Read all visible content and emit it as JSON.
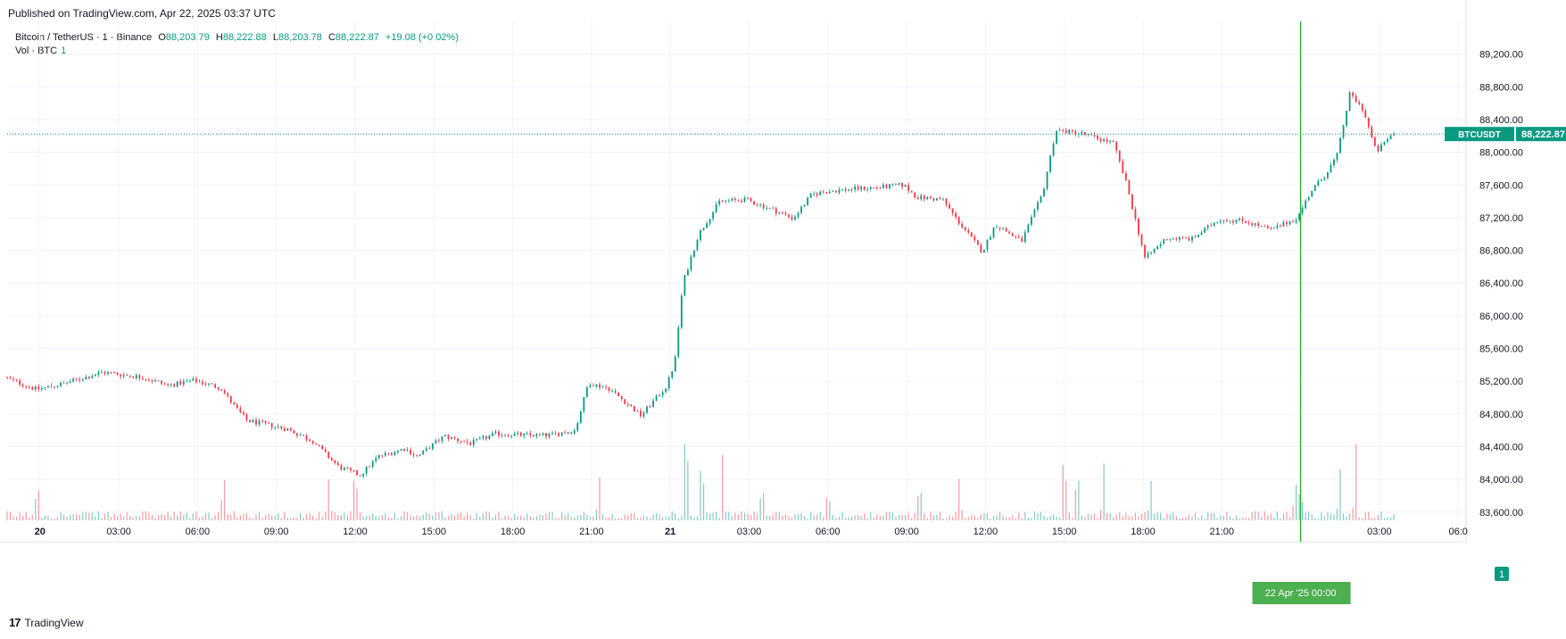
{
  "header": {
    "published": "Published on TradingView.com, Apr 22, 2025 03:37 UTC"
  },
  "legend": {
    "symbol": "Bitcoin / TetherUS · 1 · Binance",
    "o_label": "O",
    "o_value": "88,203.79",
    "h_label": "H",
    "h_value": "88,222.88",
    "l_label": "L",
    "l_value": "88,203.78",
    "c_label": "C",
    "c_value": "88,222.87",
    "change": "+19.08 (+0.02%)",
    "vol_label": "Vol · BTC",
    "vol_value": "1"
  },
  "price_tag": {
    "symbol": "BTCUSDT",
    "price": "88,222.87"
  },
  "cursor_label": {
    "date": "22 Apr '25",
    "time": "00:00"
  },
  "vol_tag": "1",
  "footer": {
    "brand": "TradingView"
  },
  "colors": {
    "up": "#089981",
    "down": "#f23645",
    "grid": "#f0f3fa",
    "cursor": "#22ab29",
    "cursor_label_bg": "#4caf50",
    "axis_text": "#131722"
  },
  "chart_data": {
    "type": "candlestick",
    "title": "Bitcoin / TetherUS · 1 · Binance",
    "ylim": [
      83500,
      89600
    ],
    "y_ticks": [
      "83,600.00",
      "84,000.00",
      "84,400.00",
      "84,800.00",
      "85,200.00",
      "85,600.00",
      "86,000.00",
      "86,400.00",
      "86,800.00",
      "87,200.00",
      "87,600.00",
      "88,000.00",
      "88,400.00",
      "88,800.00",
      "89,200.00"
    ],
    "y_tick_values": [
      83600,
      84000,
      84400,
      84800,
      85200,
      85600,
      86000,
      86400,
      86800,
      87200,
      87600,
      88000,
      88400,
      88800,
      89200
    ],
    "x_ticks": [
      "20",
      "03:00",
      "06:00",
      "09:00",
      "12:00",
      "15:00",
      "18:00",
      "21:00",
      "21",
      "03:00",
      "06:00",
      "09:00",
      "12:00",
      "15:00",
      "18:00",
      "21:00",
      "03:00",
      "06:0"
    ],
    "x_tick_hours": [
      0,
      3,
      6,
      9,
      12,
      15,
      18,
      21,
      24,
      27,
      30,
      33,
      36,
      39,
      42,
      45,
      51,
      54
    ],
    "x_range_hours": [
      -1.25,
      54.3
    ],
    "last_hour": 51.6,
    "cursor_hour": 48,
    "last_price": 88222.87,
    "price_path": [
      [
        -1.25,
        85250
      ],
      [
        0,
        85100
      ],
      [
        1,
        85170
      ],
      [
        2.5,
        85310
      ],
      [
        4,
        85250
      ],
      [
        5,
        85150
      ],
      [
        6,
        85210
      ],
      [
        7,
        85120
      ],
      [
        7.5,
        84900
      ],
      [
        8,
        84720
      ],
      [
        9.5,
        84620
      ],
      [
        10.5,
        84470
      ],
      [
        11.5,
        84150
      ],
      [
        12.3,
        84050
      ],
      [
        13,
        84280
      ],
      [
        14,
        84380
      ],
      [
        14.5,
        84280
      ],
      [
        15.5,
        84530
      ],
      [
        16.5,
        84440
      ],
      [
        17.5,
        84560
      ],
      [
        18.5,
        84540
      ],
      [
        19.5,
        84540
      ],
      [
        20.5,
        84600
      ],
      [
        21,
        85180
      ],
      [
        21.8,
        85110
      ],
      [
        22.5,
        84920
      ],
      [
        23,
        84780
      ],
      [
        24,
        85150
      ],
      [
        24.3,
        85450
      ],
      [
        24.6,
        86400
      ],
      [
        25.2,
        87000
      ],
      [
        26,
        87400
      ],
      [
        27,
        87420
      ],
      [
        28,
        87300
      ],
      [
        28.8,
        87190
      ],
      [
        29.5,
        87480
      ],
      [
        30,
        87520
      ],
      [
        31,
        87550
      ],
      [
        32,
        87570
      ],
      [
        33,
        87600
      ],
      [
        33.5,
        87450
      ],
      [
        34.5,
        87420
      ],
      [
        35,
        87190
      ],
      [
        36,
        86780
      ],
      [
        36.5,
        87120
      ],
      [
        37.5,
        86910
      ],
      [
        38.3,
        87500
      ],
      [
        38.8,
        88270
      ],
      [
        39.8,
        88230
      ],
      [
        41,
        88110
      ],
      [
        41.5,
        87600
      ],
      [
        42.2,
        86700
      ],
      [
        43,
        86950
      ],
      [
        44,
        86940
      ],
      [
        45,
        87180
      ],
      [
        46,
        87160
      ],
      [
        47,
        87050
      ],
      [
        48,
        87200
      ],
      [
        48.5,
        87520
      ],
      [
        49,
        87700
      ],
      [
        49.5,
        87950
      ],
      [
        50,
        88720
      ],
      [
        50.5,
        88520
      ],
      [
        51,
        88000
      ],
      [
        51.6,
        88222.87
      ]
    ],
    "volume_spikes": [
      [
        -0.1,
        0.35
      ],
      [
        7,
        0.4
      ],
      [
        11,
        0.3
      ],
      [
        12,
        0.45
      ],
      [
        21.3,
        0.35
      ],
      [
        24.6,
        1.0
      ],
      [
        25.2,
        0.6
      ],
      [
        26,
        0.55
      ],
      [
        27.5,
        0.3
      ],
      [
        30,
        0.2
      ],
      [
        33.5,
        0.35
      ],
      [
        35,
        0.3
      ],
      [
        39,
        0.7
      ],
      [
        39.5,
        0.5
      ],
      [
        40.5,
        0.45
      ],
      [
        42.3,
        0.3
      ],
      [
        47.8,
        0.35
      ],
      [
        48,
        0.3
      ],
      [
        49.5,
        0.4
      ],
      [
        50.1,
        0.65
      ]
    ]
  }
}
